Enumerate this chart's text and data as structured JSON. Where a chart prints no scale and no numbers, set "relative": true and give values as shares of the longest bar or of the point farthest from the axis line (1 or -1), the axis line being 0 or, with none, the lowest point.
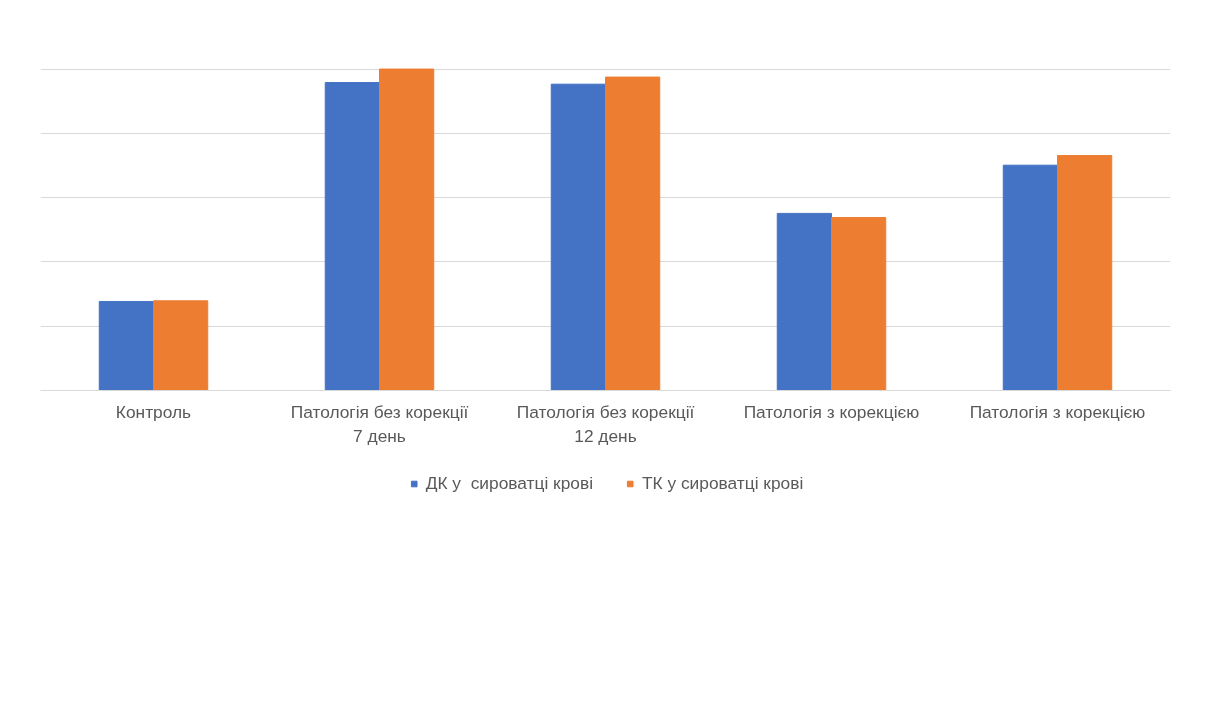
{
  "chart_data": {
    "type": "bar",
    "relative": true,
    "categories": [
      "Контроль",
      "Патологія без корекції\n7 день",
      "Патологія без корекції\n12 день",
      "Патологія з корекцією",
      "Патологія з корекцією"
    ],
    "series": [
      {
        "name": "ДК у  сироватці крові",
        "color": "#4472c4",
        "values": [
          0.277,
          0.958,
          0.953,
          0.551,
          0.701
        ]
      },
      {
        "name": "ТК у сироватці крові",
        "color": "#ed7d31",
        "values": [
          0.279,
          1,
          0.975,
          0.538,
          0.731
        ]
      }
    ],
    "grid": "y",
    "legend": "bottom"
  }
}
